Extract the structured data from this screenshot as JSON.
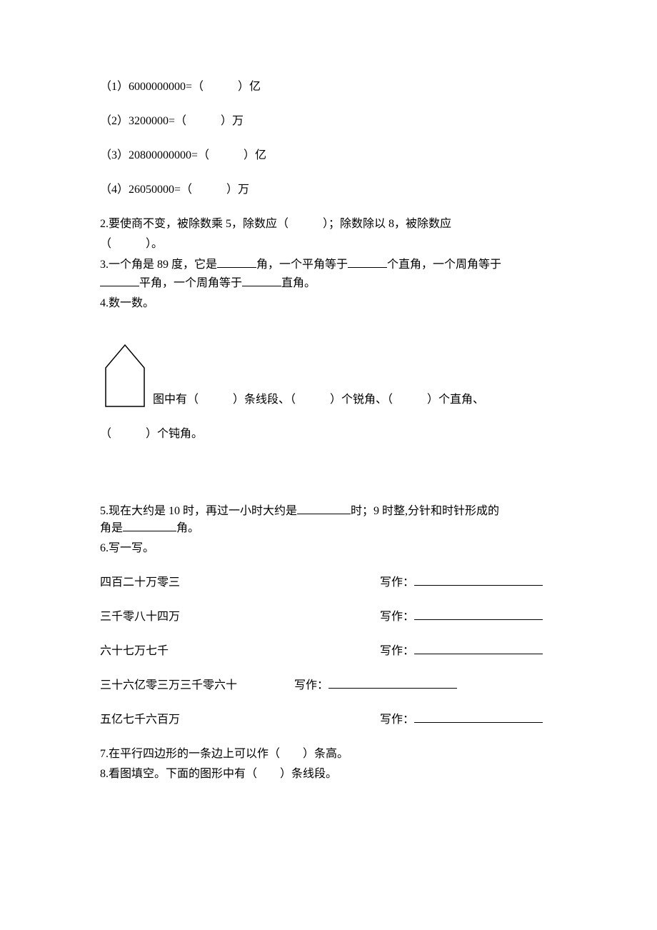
{
  "q1": {
    "items": [
      {
        "label": "（1）6000000000=（　　　）亿"
      },
      {
        "label": "（2）3200000=（　　　）万"
      },
      {
        "label": "（3）20800000000=（　　　）亿"
      },
      {
        "label": "（4）26050000=（　　　）万"
      }
    ]
  },
  "q2": {
    "line1": "2.要使商不变，被除数乘 5，除数应（　　　）；除数除以 8，被除数应",
    "line2": "（　　　）。"
  },
  "q3": {
    "part1": "3.一个角是 89 度，它是",
    "part2": "角，一个平角等于",
    "part3": "个直角，一个周角等于",
    "part4": "平角，一个周角等于",
    "part5": "直角。",
    "underline_width": 55
  },
  "q4": {
    "title": "4.数一数。",
    "text1": "图中有（　　　）条线段、（　　　）个锐角、（　　　）个直角、",
    "text2": "（　　　）个钝角。",
    "house": {
      "width": 70,
      "height": 95,
      "stroke": "#000000",
      "stroke_width": 1.5
    }
  },
  "q5": {
    "part1": "5.现在大约是 10 时，再过一小时大约是",
    "part2": "时；9 时整,分针和时针形成的",
    "part3": "角是",
    "part4": "角。",
    "u1_width": 75,
    "u2_width": 75
  },
  "q6": {
    "title": "6.写一写。",
    "rows": [
      {
        "text": "四百二十万零三",
        "gap": 280,
        "prefix": "写作：",
        "uwidth": 180
      },
      {
        "text": "三千零八十四万",
        "gap": 280,
        "prefix": "写作：",
        "uwidth": 180
      },
      {
        "text": "六十七万七千",
        "gap": 296,
        "prefix": "写作：",
        "uwidth": 180
      },
      {
        "text": "三十六亿零三万三千零六十",
        "gap": 80,
        "prefix": "写作：",
        "uwidth": 180
      },
      {
        "text": "五亿七千六百万",
        "gap": 280,
        "prefix": "写作：",
        "uwidth": 180
      }
    ]
  },
  "q7": {
    "text": "7.在平行四边形的一条边上可以作（　　）条高。"
  },
  "q8": {
    "text": "8.看图填空。下面的图形中有（　　）条线段。"
  }
}
